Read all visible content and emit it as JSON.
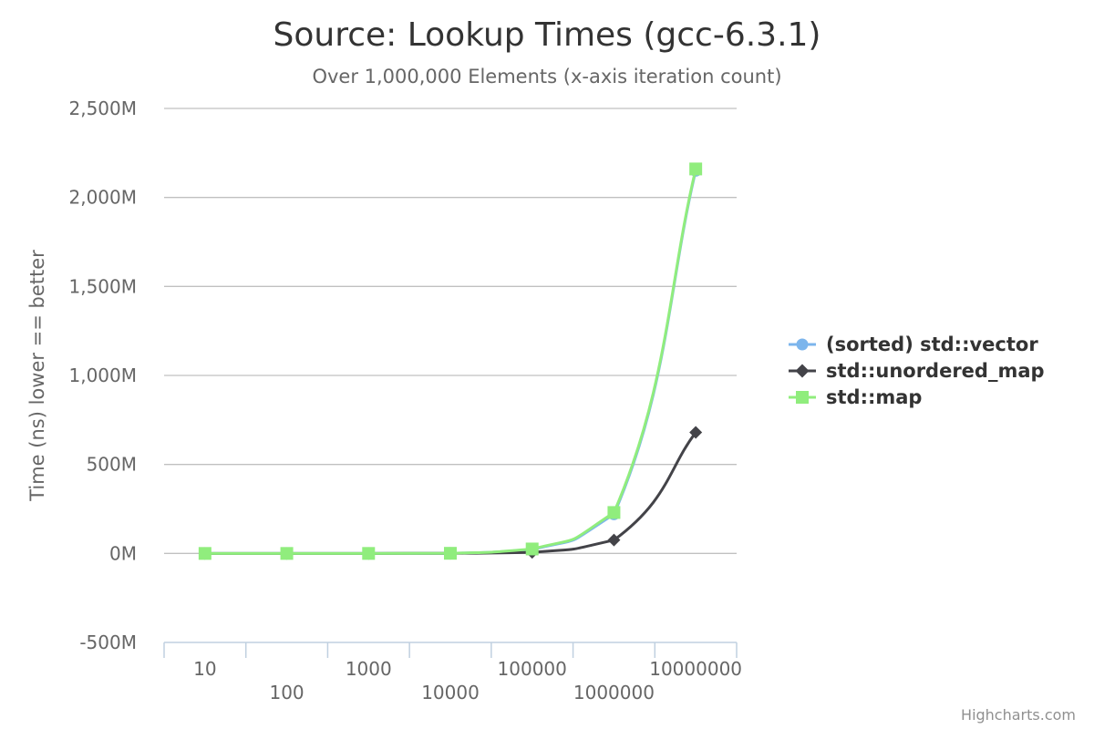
{
  "chart_data": {
    "type": "line",
    "title": "Source: Lookup Times (gcc-6.3.1)",
    "subtitle": "Over 1,000,000 Elements (x-axis iteration count)",
    "xlabel": "",
    "ylabel": "Time (ns) lower == better",
    "categories": [
      "10",
      "100",
      "1000",
      "10000",
      "100000",
      "1000000",
      "10000000"
    ],
    "ylim": [
      -500000000,
      2500000000
    ],
    "yticks": [
      {
        "value": -500000000,
        "label": "-500M"
      },
      {
        "value": 0,
        "label": "0M"
      },
      {
        "value": 500000000,
        "label": "500M"
      },
      {
        "value": 1000000000,
        "label": "1,000M"
      },
      {
        "value": 1500000000,
        "label": "1,500M"
      },
      {
        "value": 2000000000,
        "label": "2,000M"
      },
      {
        "value": 2500000000,
        "label": "2,500M"
      }
    ],
    "grid": true,
    "legend_position": "right",
    "series": [
      {
        "name": "(sorted) std::vector",
        "color": "#7cb5ec",
        "marker": "circle",
        "values": [
          500,
          5000,
          60000,
          700000,
          22000000,
          220000000,
          2150000000
        ]
      },
      {
        "name": "std::unordered_map",
        "color": "#434348",
        "marker": "diamond",
        "values": [
          300,
          3000,
          30000,
          350000,
          6000000,
          75000000,
          680000000
        ]
      },
      {
        "name": "std::map",
        "color": "#90ed7d",
        "marker": "square",
        "values": [
          600,
          6000,
          70000,
          800000,
          25000000,
          230000000,
          2160000000
        ]
      }
    ]
  },
  "credits": "Highcharts.com"
}
